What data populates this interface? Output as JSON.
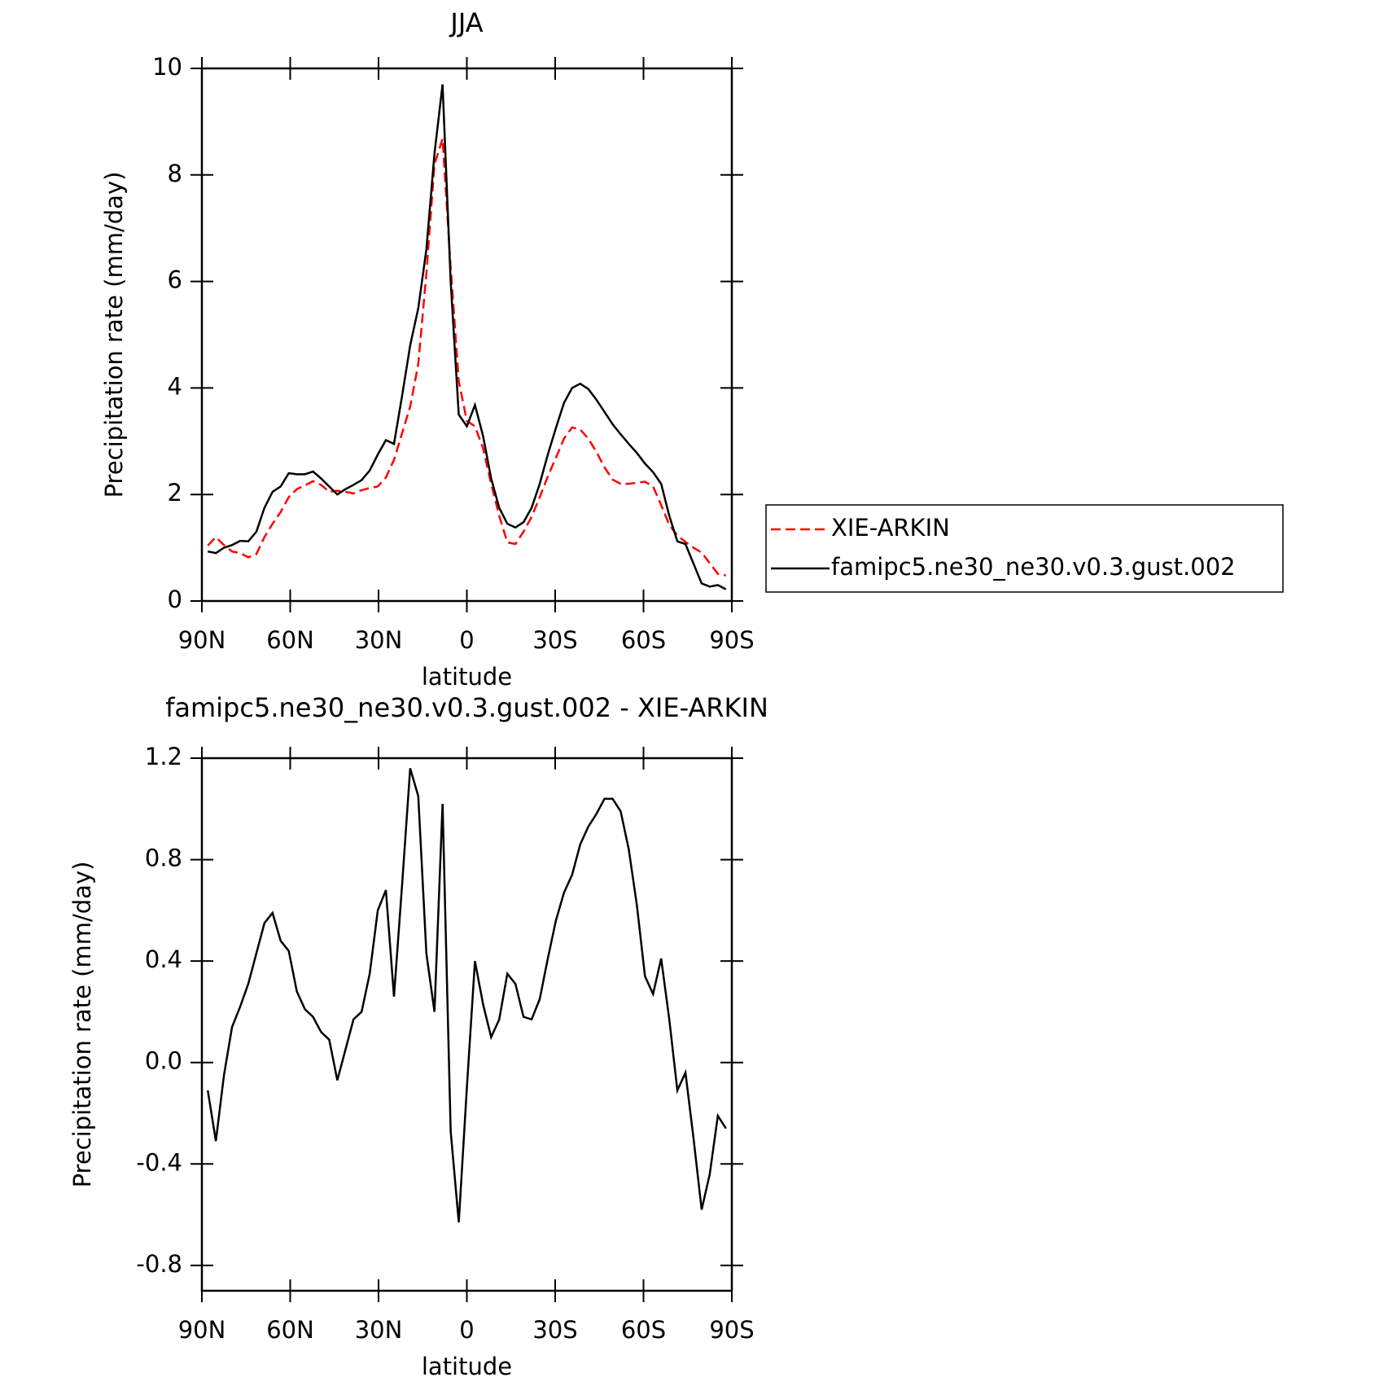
{
  "chart_data": [
    {
      "type": "line",
      "title": "JJA",
      "x_label": "latitude",
      "y_label": "Precipitation rate (mm/day)",
      "x": [
        88,
        85.25,
        82.5,
        79.75,
        77,
        74.25,
        71.5,
        68.75,
        66,
        63.25,
        60.5,
        57.75,
        55,
        52.25,
        49.5,
        46.75,
        44,
        41.25,
        38.5,
        35.75,
        33,
        30.25,
        27.5,
        24.75,
        22,
        19.25,
        16.5,
        13.75,
        11,
        8.25,
        5.5,
        2.75,
        0,
        -2.75,
        -5.5,
        -8.25,
        -11,
        -13.75,
        -16.5,
        -19.25,
        -22,
        -24.75,
        -27.5,
        -30.25,
        -33,
        -35.75,
        -38.5,
        -41.25,
        -44,
        -46.75,
        -49.5,
        -52.25,
        -55,
        -57.75,
        -60.5,
        -63.25,
        -66,
        -68.75,
        -71.5,
        -74.25,
        -77,
        -79.75,
        -82.5,
        -85.25,
        -88
      ],
      "series": [
        {
          "name": "XIE-ARKIN",
          "color": "#ff0000",
          "line_style": "dashed",
          "values": [
            1.04,
            1.2,
            1.05,
            0.93,
            0.9,
            0.82,
            0.88,
            1.2,
            1.45,
            1.67,
            1.95,
            2.1,
            2.17,
            2.25,
            2.18,
            2.05,
            2.07,
            2.05,
            2.02,
            2.08,
            2.12,
            2.15,
            2.32,
            2.65,
            3.15,
            3.65,
            4.45,
            6.15,
            8.2,
            8.68,
            6.27,
            4.13,
            3.38,
            3.28,
            2.87,
            2.2,
            1.6,
            1.1,
            1.07,
            1.3,
            1.58,
            1.95,
            2.34,
            2.69,
            3.05,
            3.26,
            3.22,
            3.05,
            2.8,
            2.51,
            2.28,
            2.2,
            2.2,
            2.22,
            2.24,
            2.15,
            1.8,
            1.43,
            1.23,
            1.11,
            1.0,
            0.91,
            0.71,
            0.51,
            0.48
          ]
        },
        {
          "name": "famipc5.ne30_ne30.v0.3.gust.002",
          "color": "#000000",
          "line_style": "solid",
          "values": [
            0.93,
            0.9,
            1.0,
            1.05,
            1.13,
            1.12,
            1.3,
            1.75,
            2.05,
            2.15,
            2.4,
            2.38,
            2.38,
            2.43,
            2.3,
            2.15,
            2.0,
            2.1,
            2.18,
            2.27,
            2.45,
            2.75,
            3.02,
            2.95,
            3.85,
            4.8,
            5.5,
            6.6,
            8.4,
            9.7,
            6.0,
            3.5,
            3.28,
            3.68,
            3.1,
            2.3,
            1.75,
            1.45,
            1.38,
            1.48,
            1.75,
            2.2,
            2.75,
            3.25,
            3.72,
            4.0,
            4.08,
            3.98,
            3.78,
            3.55,
            3.32,
            3.13,
            2.95,
            2.78,
            2.58,
            2.42,
            2.2,
            1.6,
            1.12,
            1.07,
            0.7,
            0.33,
            0.27,
            0.3,
            0.22
          ]
        }
      ],
      "xlim": [
        90,
        -90
      ],
      "xticks": [
        {
          "value": 90,
          "label": "90N"
        },
        {
          "value": 60,
          "label": "60N"
        },
        {
          "value": 30,
          "label": "30N"
        },
        0,
        {
          "value": -30,
          "label": "30S"
        },
        {
          "value": -60,
          "label": "60S"
        },
        {
          "value": -90,
          "label": "90S"
        }
      ],
      "ylim": [
        0,
        10
      ],
      "yticks": [
        0,
        2,
        4,
        6,
        8,
        10
      ],
      "legend": "right"
    },
    {
      "type": "line",
      "title": "famipc5.ne30_ne30.v0.3.gust.002 - XIE-ARKIN",
      "x_label": "latitude",
      "y_label": "Precipitation rate (mm/day)",
      "x": [
        88,
        85.25,
        82.5,
        79.75,
        77,
        74.25,
        71.5,
        68.75,
        66,
        63.25,
        60.5,
        57.75,
        55,
        52.25,
        49.5,
        46.75,
        44,
        41.25,
        38.5,
        35.75,
        33,
        30.25,
        27.5,
        24.75,
        22,
        19.25,
        16.5,
        13.75,
        11,
        8.25,
        5.5,
        2.75,
        0,
        -2.75,
        -5.5,
        -8.25,
        -11,
        -13.75,
        -16.5,
        -19.25,
        -22,
        -24.75,
        -27.5,
        -30.25,
        -33,
        -35.75,
        -38.5,
        -41.25,
        -44,
        -46.75,
        -49.5,
        -52.25,
        -55,
        -57.75,
        -60.5,
        -63.25,
        -66,
        -68.75,
        -71.5,
        -74.25,
        -77,
        -79.75,
        -82.5,
        -85.25,
        -88
      ],
      "series": [
        {
          "color": "#000000",
          "line_style": "solid",
          "values": [
            -0.11,
            -0.31,
            -0.05,
            0.14,
            0.22,
            0.31,
            0.43,
            0.55,
            0.59,
            0.48,
            0.44,
            0.28,
            0.21,
            0.18,
            0.12,
            0.09,
            -0.07,
            0.05,
            0.17,
            0.2,
            0.35,
            0.6,
            0.68,
            0.26,
            0.7,
            1.16,
            1.05,
            0.43,
            0.2,
            1.02,
            -0.27,
            -0.63,
            -0.1,
            0.4,
            0.23,
            0.1,
            0.17,
            0.35,
            0.31,
            0.18,
            0.17,
            0.25,
            0.41,
            0.56,
            0.67,
            0.74,
            0.86,
            0.93,
            0.98,
            1.04,
            1.04,
            0.99,
            0.84,
            0.62,
            0.34,
            0.27,
            0.41,
            0.17,
            -0.11,
            -0.04,
            -0.3,
            -0.58,
            -0.44,
            -0.21,
            -0.26
          ]
        }
      ],
      "xlim": [
        90,
        -90
      ],
      "xticks": [
        {
          "value": 90,
          "label": "90N"
        },
        {
          "value": 60,
          "label": "60N"
        },
        {
          "value": 30,
          "label": "30N"
        },
        0,
        {
          "value": -30,
          "label": "30S"
        },
        {
          "value": -60,
          "label": "60S"
        },
        {
          "value": -90,
          "label": "90S"
        }
      ],
      "ylim": [
        -0.9,
        1.2
      ],
      "yticks": [
        -0.8,
        -0.4,
        {
          "value": 0,
          "label": "0.0"
        },
        0.4,
        0.8,
        1.2
      ]
    }
  ]
}
